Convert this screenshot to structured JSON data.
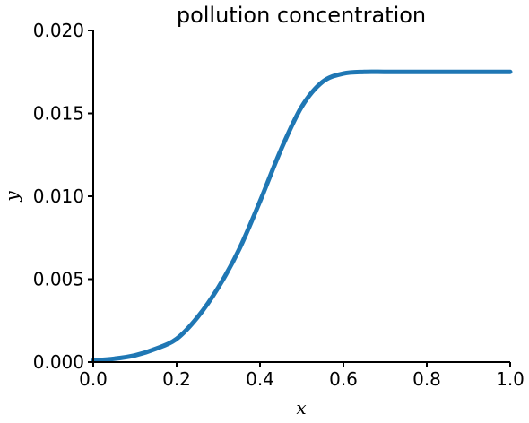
{
  "chart_data": {
    "type": "line",
    "title": "pollution concentration",
    "xlabel": "x",
    "ylabel": "y",
    "xlim": [
      0.0,
      1.0
    ],
    "ylim": [
      0.0,
      0.02
    ],
    "x_ticks": [
      "0.0",
      "0.2",
      "0.4",
      "0.6",
      "0.8",
      "1.0"
    ],
    "y_ticks": [
      "0.000",
      "0.005",
      "0.010",
      "0.015",
      "0.020"
    ],
    "grid": false,
    "series": [
      {
        "color": "#1f77b4",
        "x": [
          0.0,
          0.05,
          0.1,
          0.15,
          0.2,
          0.25,
          0.3,
          0.35,
          0.4,
          0.45,
          0.5,
          0.55,
          0.6,
          0.65,
          0.7,
          0.75,
          0.8,
          0.9,
          1.0
        ],
        "y": [
          0.0001,
          0.0002,
          0.0004,
          0.0008,
          0.0014,
          0.0027,
          0.0045,
          0.0068,
          0.0097,
          0.0128,
          0.0154,
          0.0169,
          0.0174,
          0.0175,
          0.0175,
          0.0175,
          0.0175,
          0.0175,
          0.0175
        ]
      }
    ]
  }
}
